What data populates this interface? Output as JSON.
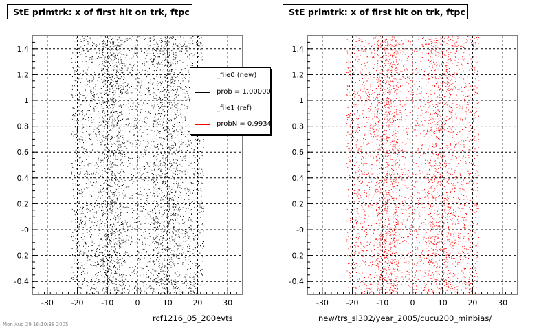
{
  "chart_data": [
    {
      "type": "scatter",
      "title": "StE primtrk: x of first hit on trk, ftpc",
      "xlabel": "rcf1216_05_200evts",
      "ylabel": "",
      "xlim": [
        -35,
        35
      ],
      "ylim": [
        -0.5,
        1.5
      ],
      "xticks": [
        "-30",
        "-20",
        "-10",
        "0",
        "10",
        "20",
        "30"
      ],
      "yticks": [
        "-0.4",
        "-0.2",
        "-0",
        "0.2",
        "0.4",
        "0.6",
        "0.8",
        "1",
        "1.2",
        "1.4"
      ],
      "grid": true,
      "marker_color": "#000000",
      "density_bands_x": [
        [
          -22,
          -12
        ],
        [
          -12,
          -5
        ],
        [
          5,
          13
        ],
        [
          13,
          22
        ]
      ],
      "points_x_range": [
        -22,
        22
      ],
      "legend": {
        "placement": "top-right",
        "entries": [
          {
            "label": "_file0 (new)",
            "color": "#000000"
          },
          {
            "label": "prob = 1.000000",
            "color": "#000000"
          },
          {
            "label": "_file1 (ref)",
            "color": "#ff0000"
          },
          {
            "label": "probN = 0.993430",
            "color": "#ff0000"
          }
        ]
      }
    },
    {
      "type": "scatter",
      "title": "StE primtrk: x of first hit on trk, ftpc",
      "xlabel": "new/trs_sl302/year_2005/cucu200_minbias/",
      "ylabel": "",
      "xlim": [
        -35,
        35
      ],
      "ylim": [
        -0.5,
        1.5
      ],
      "xticks": [
        "-30",
        "-20",
        "-10",
        "0",
        "10",
        "20",
        "30"
      ],
      "yticks": [
        "-0.4",
        "-0.2",
        "-0",
        "0.2",
        "0.4",
        "0.6",
        "0.8",
        "1",
        "1.2",
        "1.4"
      ],
      "grid": true,
      "marker_color": "#ff0000",
      "density_bands_x": [
        [
          -22,
          -12
        ],
        [
          -12,
          -5
        ],
        [
          5,
          13
        ],
        [
          13,
          22
        ]
      ],
      "points_x_range": [
        -22,
        22
      ]
    }
  ],
  "footer": {
    "date": "Mon Aug 29 16:10:38 2005"
  }
}
